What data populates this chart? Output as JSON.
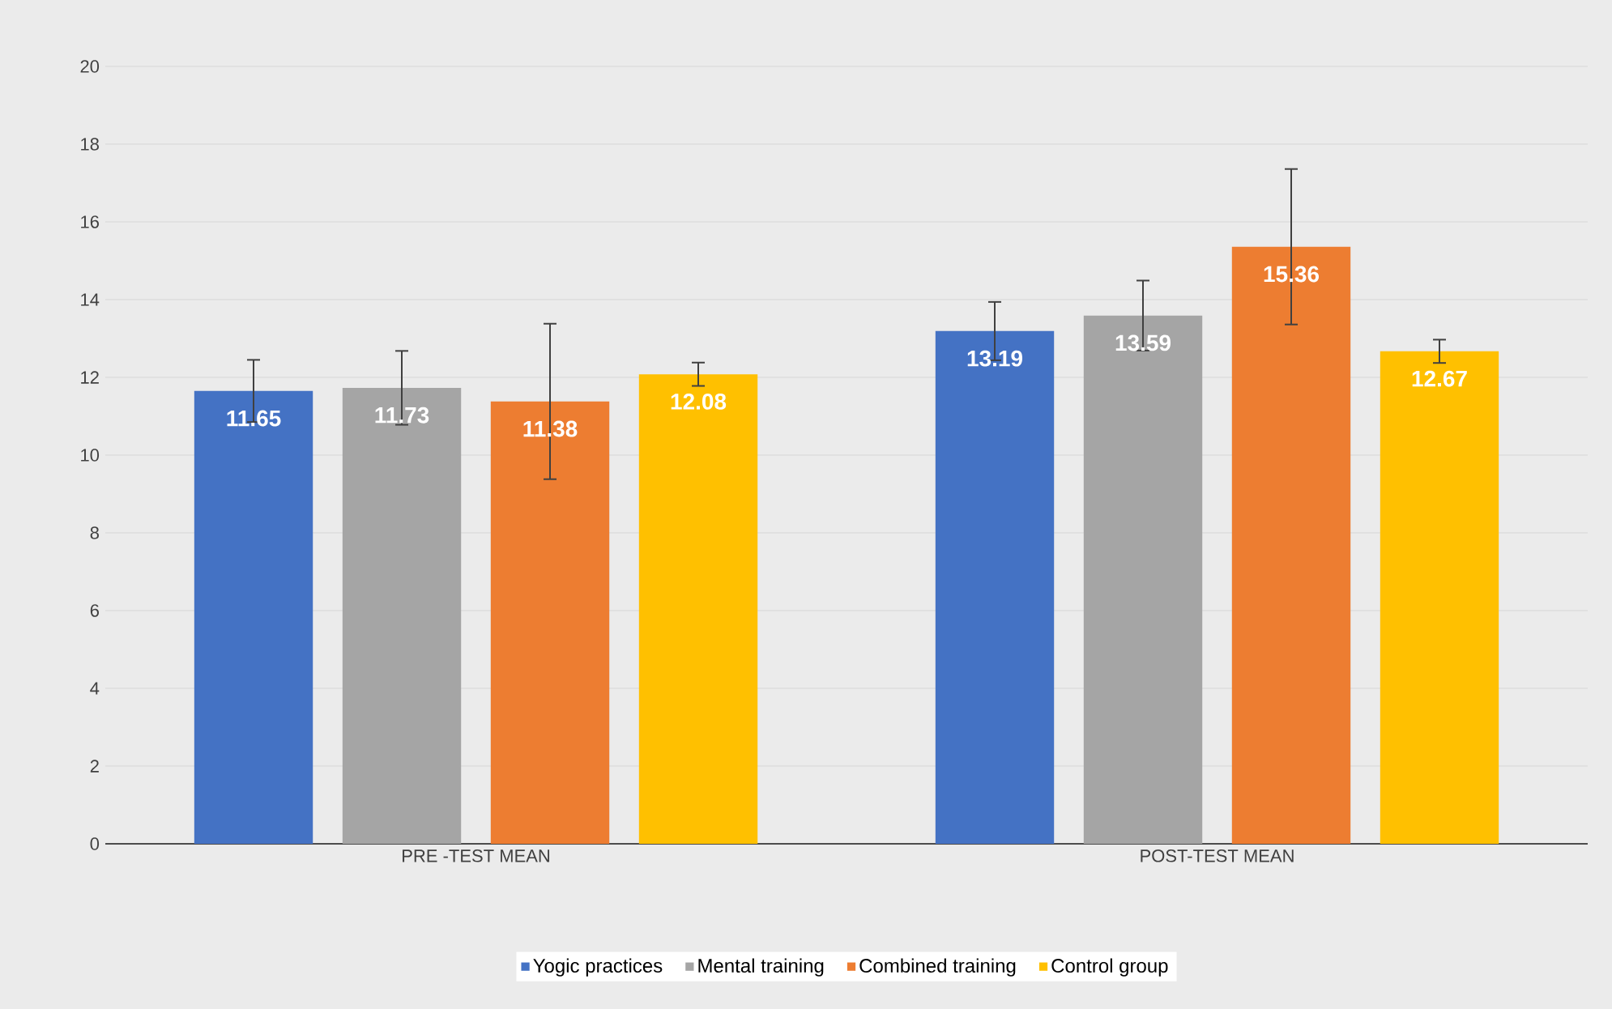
{
  "chart_data": {
    "type": "bar",
    "categories": [
      "PRE -TEST MEAN",
      "POST-TEST MEAN"
    ],
    "series": [
      {
        "name": "Yogic practices",
        "color": "#4472c4",
        "values": [
          11.65,
          13.19
        ],
        "errors": [
          0.8,
          0.75
        ]
      },
      {
        "name": "Mental training",
        "color": "#a5a5a5",
        "values": [
          11.73,
          13.59
        ],
        "errors": [
          0.95,
          0.9
        ]
      },
      {
        "name": "Combined training",
        "color": "#ed7d31",
        "values": [
          11.38,
          15.36
        ],
        "errors": [
          2.0,
          2.0
        ]
      },
      {
        "name": "Control group",
        "color": "#ffc000",
        "values": [
          12.08,
          12.67
        ],
        "errors": [
          0.3,
          0.3
        ]
      }
    ],
    "ylim": [
      0,
      20
    ],
    "yticks": [
      0,
      2,
      4,
      6,
      8,
      10,
      12,
      14,
      16,
      18,
      20
    ],
    "grid": "y",
    "legend": "bottom",
    "data_labels": true
  }
}
